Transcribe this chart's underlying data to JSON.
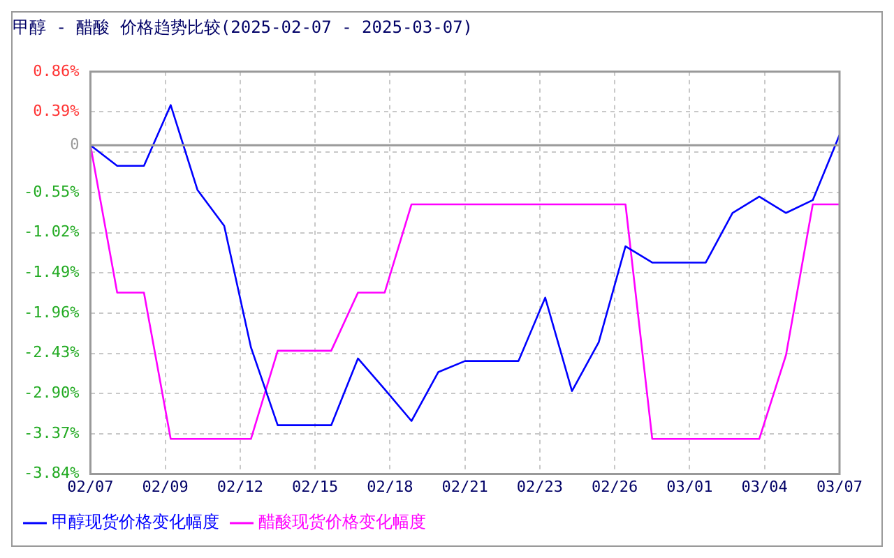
{
  "chart_data": {
    "type": "line",
    "title": "甲醇 - 醋酸 价格趋势比较(2025-02-07 - 2025-03-07)",
    "x": [
      "2025-02-07",
      "2025-02-08",
      "2025-02-09",
      "2025-02-10",
      "2025-02-11",
      "2025-02-12",
      "2025-02-13",
      "2025-02-14",
      "2025-02-15",
      "2025-02-16",
      "2025-02-17",
      "2025-02-18",
      "2025-02-19",
      "2025-02-20",
      "2025-02-21",
      "2025-02-22",
      "2025-02-23",
      "2025-02-24",
      "2025-02-25",
      "2025-02-26",
      "2025-02-27",
      "2025-02-28",
      "2025-03-01",
      "2025-03-02",
      "2025-03-03",
      "2025-03-04",
      "2025-03-05",
      "2025-03-06",
      "2025-03-07"
    ],
    "series": [
      {
        "name": "甲醇现货价格变化幅度",
        "color": "#0000ff",
        "values": [
          0.0,
          -0.24,
          -0.24,
          0.47,
          -0.52,
          -0.94,
          -2.36,
          -3.27,
          -3.27,
          -3.27,
          -2.49,
          -2.85,
          -3.22,
          -2.65,
          -2.52,
          -2.52,
          -2.52,
          -1.78,
          -2.87,
          -2.3,
          -1.18,
          -1.37,
          -1.37,
          -1.37,
          -0.79,
          -0.6,
          -0.79,
          -0.64,
          0.12
        ]
      },
      {
        "name": "醋酸现货价格变化幅度",
        "color": "#ff00ff",
        "values": [
          0.0,
          -1.72,
          -1.72,
          -3.43,
          -3.43,
          -3.43,
          -3.43,
          -2.4,
          -2.4,
          -2.4,
          -1.72,
          -1.72,
          -0.69,
          -0.69,
          -0.69,
          -0.69,
          -0.69,
          -0.69,
          -0.69,
          -0.69,
          -0.69,
          -3.43,
          -3.43,
          -3.43,
          -3.43,
          -3.43,
          -2.45,
          -0.69,
          -0.69
        ]
      }
    ],
    "xlim": [
      "2025-02-07",
      "2025-03-07"
    ],
    "xticks": [
      {
        "value": "2025-02-07",
        "label": "02/07"
      },
      {
        "value": "2025-02-09T19:12",
        "label": "02/09"
      },
      {
        "value": "2025-02-12T14:24",
        "label": "02/12"
      },
      {
        "value": "2025-02-15T09:36",
        "label": "02/15"
      },
      {
        "value": "2025-02-18T04:48",
        "label": "02/18"
      },
      {
        "value": "2025-02-21",
        "label": "02/21"
      },
      {
        "value": "2025-02-23T19:12",
        "label": "02/23"
      },
      {
        "value": "2025-02-26T14:24",
        "label": "02/26"
      },
      {
        "value": "2025-03-01T09:36",
        "label": "03/01"
      },
      {
        "value": "2025-03-04T04:48",
        "label": "03/04"
      },
      {
        "value": "2025-03-07",
        "label": "03/07"
      }
    ],
    "ylim": [
      -3.84,
      0.86
    ],
    "yticks": [
      {
        "value": -3.84,
        "label": "-3.84%"
      },
      {
        "value": -3.37,
        "label": "-3.37%"
      },
      {
        "value": -2.9,
        "label": "-2.90%"
      },
      {
        "value": -2.43,
        "label": "-2.43%"
      },
      {
        "value": -1.96,
        "label": "-1.96%"
      },
      {
        "value": -1.49,
        "label": "-1.49%"
      },
      {
        "value": -1.02,
        "label": "-1.02%"
      },
      {
        "value": -0.55,
        "label": "-0.55%"
      },
      {
        "value": -0.08,
        "label": null
      },
      {
        "value": 0,
        "label": "0"
      },
      {
        "value": 0.39,
        "label": "0.39%"
      },
      {
        "value": 0.86,
        "label": "0.86%"
      }
    ],
    "ref_lines": [
      {
        "axis": "y",
        "value": 0,
        "color": "#999999"
      }
    ],
    "grid": true,
    "legend": "bottom",
    "marker": "none",
    "line_style": "solid"
  }
}
